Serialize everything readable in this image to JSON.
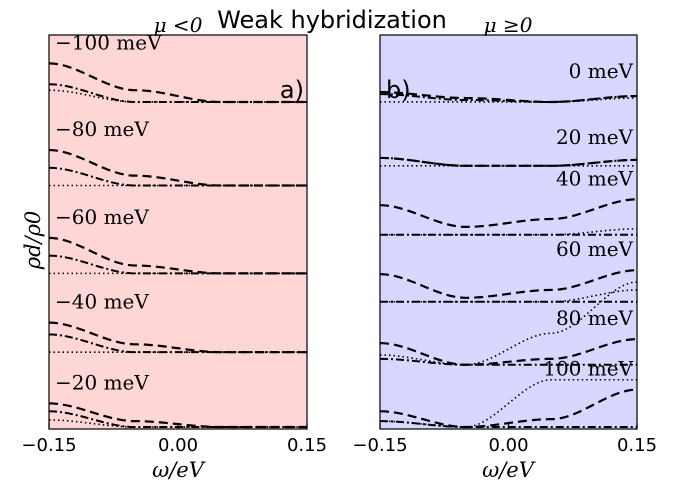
{
  "figure": {
    "title": "Weak hybridization"
  },
  "chart_data": [
    {
      "type": "line",
      "panel_label": "a)",
      "top_label": "μ <0",
      "background": "#ffd6d6",
      "xlabel": "ω/eV",
      "ylabel": "ρd/ρ0",
      "xlim": [
        -0.15,
        0.15
      ],
      "ylim": [
        0,
        1
      ],
      "xticks": [
        "−0.15",
        "0.00",
        "0.15"
      ],
      "grid": false,
      "series": [
        {
          "label": "−100 meV",
          "offset": 0.83,
          "dashed": [
            0.098,
            0.03,
            0.0,
            0.0
          ],
          "dotted": [
            0.03,
            0.0,
            0.0,
            0.0
          ],
          "dashdot": [
            0.045,
            0.0,
            0.0,
            0.0
          ]
        },
        {
          "label": "−80 meV",
          "offset": 0.618,
          "dashed": [
            0.09,
            0.025,
            0.0,
            0.0
          ],
          "dotted": [
            0.0,
            0.0,
            0.0,
            0.0
          ],
          "dashdot": [
            0.045,
            0.0,
            0.0,
            0.0
          ]
        },
        {
          "label": "−60 meV",
          "offset": 0.395,
          "dashed": [
            0.09,
            0.02,
            0.0,
            0.0
          ],
          "dotted": [
            0.0,
            0.0,
            0.0,
            0.0
          ],
          "dashdot": [
            0.045,
            0.0,
            0.0,
            0.0
          ]
        },
        {
          "label": "−40 meV",
          "offset": 0.195,
          "dashed": [
            0.075,
            0.02,
            0.0,
            0.0
          ],
          "dotted": [
            0.0,
            0.0,
            0.0,
            0.0
          ],
          "dashdot": [
            0.045,
            0.0,
            0.0,
            0.0
          ]
        },
        {
          "label": "−20 meV",
          "offset": 0.005,
          "dashed": [
            0.06,
            0.015,
            0.0,
            0.0
          ],
          "dotted": [
            0.018,
            0.0,
            0.0,
            0.0
          ],
          "dashdot": [
            0.04,
            0.0,
            0.0,
            0.0
          ]
        }
      ]
    },
    {
      "type": "line",
      "panel_label": "b)",
      "top_label": "μ ≥0",
      "background": "#d7d7ff",
      "xlabel": "ω/eV",
      "ylabel": "",
      "xlim": [
        -0.15,
        0.15
      ],
      "ylim": [
        0,
        1
      ],
      "xticks": [
        "−0.15",
        "0.00",
        "0.15"
      ],
      "grid": false,
      "series": [
        {
          "label": "0 meV",
          "offset": 0.83,
          "dashed": [
            0.025,
            0.01,
            0.0,
            0.015
          ],
          "dotted": [
            0.0,
            0.0,
            0.0,
            0.01
          ],
          "dashdot": [
            0.02,
            0.005,
            0.0,
            0.015
          ]
        },
        {
          "label": "20 meV",
          "offset": 0.668,
          "dashed": [
            0.02,
            0.0,
            0.0,
            0.015
          ],
          "dotted": [
            0.0,
            0.0,
            0.0,
            0.0
          ],
          "dashdot": [
            0.02,
            0.0,
            0.0,
            0.015
          ]
        },
        {
          "label": "40 meV",
          "offset": 0.493,
          "dashed": [
            0.075,
            0.02,
            0.04,
            0.09
          ],
          "dotted": [
            0.0,
            0.0,
            0.0,
            0.015
          ],
          "dashdot": [
            0.0,
            0.0,
            0.0,
            0.0
          ]
        },
        {
          "label": "60 meV",
          "offset": 0.323,
          "dashed": [
            0.07,
            0.01,
            0.03,
            0.08
          ],
          "dotted": [
            0.0,
            0.0,
            0.0,
            0.03
          ],
          "dashdot": [
            0.0,
            0.0,
            0.0,
            0.0
          ]
        },
        {
          "label": "80 meV",
          "offset": 0.163,
          "dashed": [
            0.055,
            0.0,
            0.015,
            0.065
          ],
          "dotted": [
            0.025,
            0.0,
            0.08,
            0.21
          ],
          "dashdot": [
            0.015,
            0.0,
            0.0,
            0.0
          ]
        },
        {
          "label": "100 meV",
          "offset": 0.005,
          "dashed": [
            0.04,
            0.0,
            0.02,
            0.095
          ],
          "dotted": [
            0.015,
            0.0,
            0.12,
            0.12
          ],
          "dashdot": [
            0.015,
            0.0,
            0.0,
            0.0
          ]
        }
      ]
    }
  ]
}
